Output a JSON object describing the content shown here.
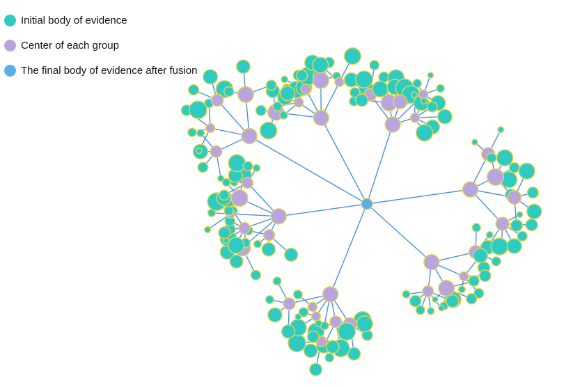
{
  "legend": {
    "items": [
      {
        "label": "Initial body of evidence",
        "color": "#2ecbc3"
      },
      {
        "label": "Center of each group",
        "color": "#b8a4de"
      },
      {
        "label": "The final body of evidence after fusion",
        "color": "#5aaeea"
      }
    ]
  },
  "colors": {
    "edge": "#4a90e2",
    "node_outline": "#e8d64a",
    "evidence": "#2ecbc3",
    "group_center": "#b8a4de",
    "final": "#5aaeea"
  },
  "graph": {
    "branches": 7,
    "groups_per_branch": [
      5,
      5,
      4,
      6,
      4,
      6,
      4
    ]
  }
}
